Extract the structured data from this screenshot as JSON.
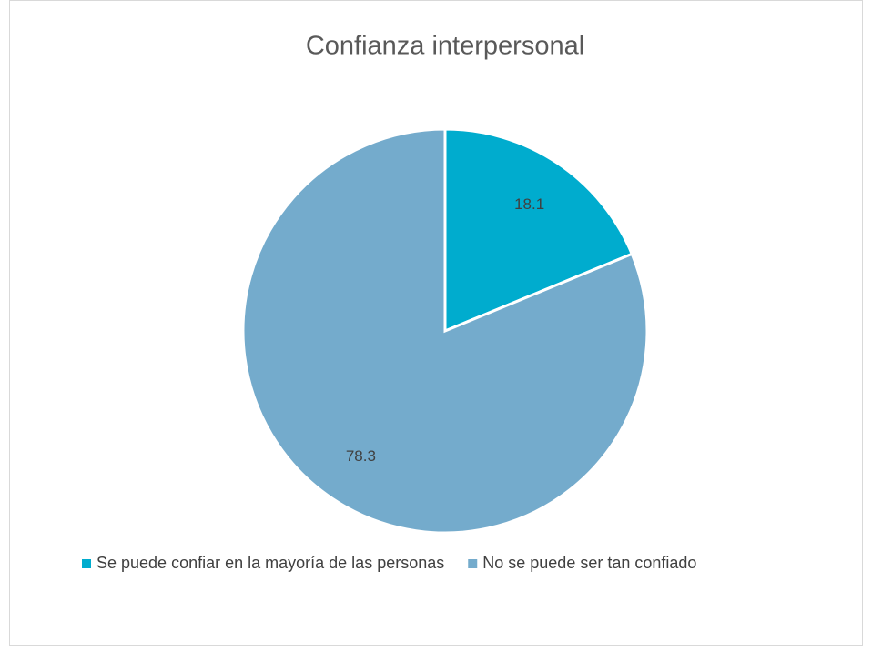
{
  "chart_data": {
    "type": "pie",
    "title": "Confianza interpersonal",
    "categories": [
      "Se puede confiar en la mayoría de las personas",
      "No se puede ser tan confiado"
    ],
    "values": [
      18.1,
      78.3
    ],
    "colors": [
      "#00acce",
      "#74abcc"
    ],
    "legend": "bottom"
  }
}
